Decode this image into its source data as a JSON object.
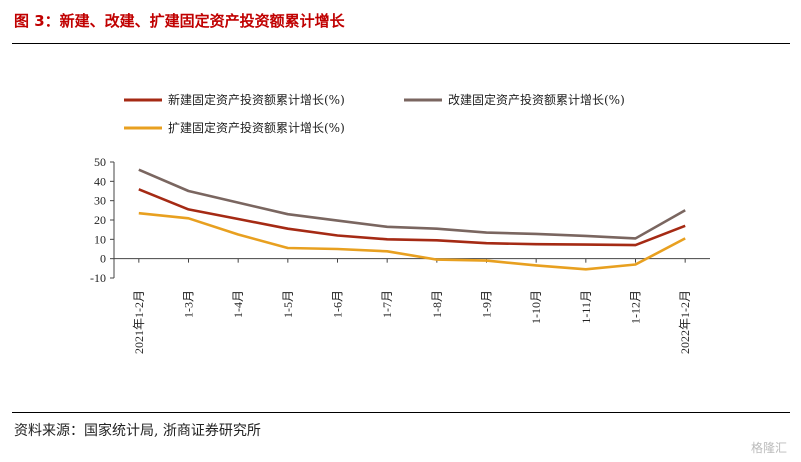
{
  "figure": {
    "title": "图 3：新建、改建、扩建固定资产投资额累计增长",
    "source": "资料来源：国家统计局, 浙商证券研究所",
    "watermark": "格隆汇"
  },
  "chart_data": {
    "type": "line",
    "categories": [
      "2021年1-2月",
      "1-3月",
      "1-4月",
      "1-5月",
      "1-6月",
      "1-7月",
      "1-8月",
      "1-9月",
      "1-10月",
      "1-11月",
      "1-12月",
      "2022年1-2月"
    ],
    "yticks": [
      50,
      40,
      30,
      20,
      10,
      0,
      -10
    ],
    "ylim": [
      -10,
      50
    ],
    "grid": false,
    "legend_position": "top",
    "series": [
      {
        "name": "新建固定资产投资额累计增长(%)",
        "color": "#a52a14",
        "values": [
          35.9,
          25.5,
          20.5,
          15.5,
          12.0,
          10.0,
          9.5,
          8.0,
          7.5,
          7.3,
          7.0,
          17.0
        ]
      },
      {
        "name": "改建固定资产投资额累计增长(%)",
        "color": "#7a6660",
        "values": [
          46.0,
          35.0,
          29.0,
          23.0,
          19.7,
          16.5,
          15.5,
          13.5,
          12.8,
          11.8,
          10.5,
          25.0
        ]
      },
      {
        "name": "扩建固定资产投资额累计增长(%)",
        "color": "#e8a020",
        "values": [
          23.5,
          20.9,
          12.5,
          5.5,
          5.0,
          3.8,
          -0.5,
          -1.0,
          -3.5,
          -5.5,
          -3.0,
          10.5
        ]
      }
    ]
  }
}
